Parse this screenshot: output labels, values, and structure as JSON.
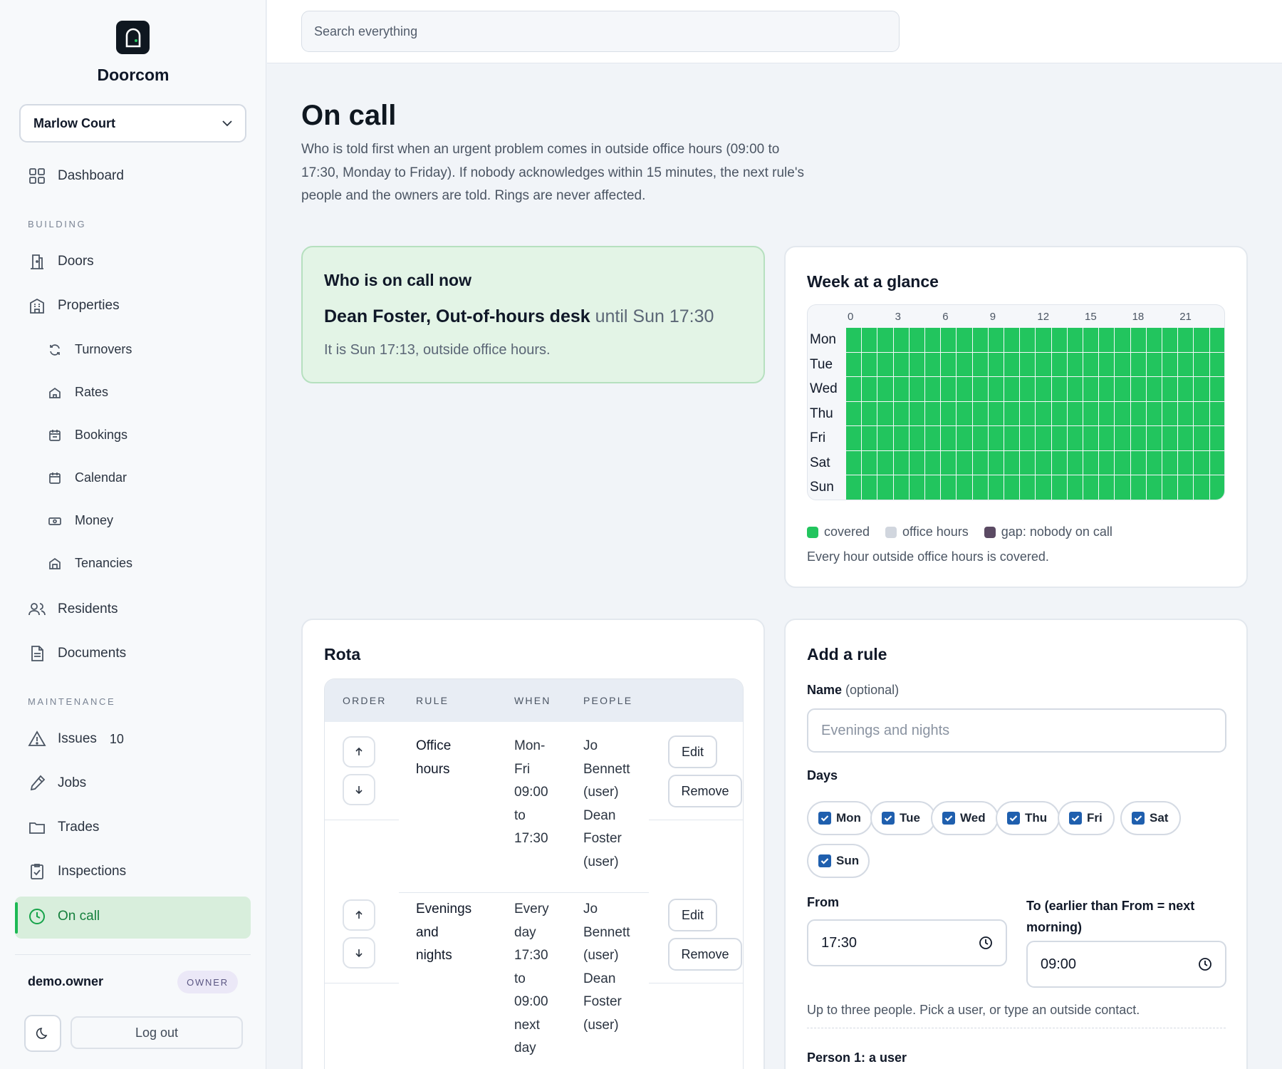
{
  "app": {
    "name": "Doorcom"
  },
  "property_selector": {
    "value": "Marlow Court"
  },
  "search": {
    "placeholder": "Search everything"
  },
  "nav": {
    "dashboard": "Dashboard",
    "section_building": "BUILDING",
    "doors": "Doors",
    "properties": "Properties",
    "turnovers": "Turnovers",
    "rates": "Rates",
    "bookings": "Bookings",
    "calendar": "Calendar",
    "money": "Money",
    "tenancies": "Tenancies",
    "residents": "Residents",
    "documents": "Documents",
    "section_maintenance": "MAINTENANCE",
    "issues": "Issues",
    "issues_count": "10",
    "jobs": "Jobs",
    "trades": "Trades",
    "inspections": "Inspections",
    "on_call": "On call"
  },
  "user": {
    "name": "demo.owner",
    "role": "OWNER",
    "logout": "Log out"
  },
  "page": {
    "title": "On call",
    "intro": "Who is told first when an urgent problem comes in outside office hours (09:00 to 17:30, Monday to Friday). If nobody acknowledges within 15 minutes, the next rule's people and the owners are told. Rings are never affected."
  },
  "now_card": {
    "title": "Who is on call now",
    "name": "Dean Foster, Out-of-hours desk",
    "until": "until Sun 17:30",
    "status": "It is Sun 17:13, outside office hours."
  },
  "week_card": {
    "title": "Week at a glance",
    "hour_labels": [
      "0",
      "3",
      "6",
      "9",
      "12",
      "15",
      "18",
      "21"
    ],
    "days": [
      "Mon",
      "Tue",
      "Wed",
      "Thu",
      "Fri",
      "Sat",
      "Sun"
    ],
    "hours_per_day": 24,
    "state_all": "covered",
    "legend": [
      {
        "label": "covered",
        "color": "#22c55e"
      },
      {
        "label": "office hours",
        "color": "#d1d6de"
      },
      {
        "label": "gap: nobody on call",
        "color": "#5b4a63"
      }
    ],
    "note": "Every hour outside office hours is covered."
  },
  "rota": {
    "title": "Rota",
    "columns": [
      "ORDER",
      "RULE",
      "WHEN",
      "PEOPLE"
    ],
    "rows": [
      {
        "rule": [
          "Office",
          "hours"
        ],
        "when": [
          "Mon-",
          "Fri",
          "09:00",
          "to",
          "17:30"
        ],
        "people": [
          "Jo",
          "Bennett",
          "(user)",
          "Dean",
          "Foster",
          "(user)"
        ],
        "edit": "Edit",
        "remove": "Remove"
      },
      {
        "rule": [
          "Evenings",
          "and",
          "nights"
        ],
        "when": [
          "Every",
          "day",
          "17:30",
          "to",
          "09:00",
          "next",
          "day"
        ],
        "people": [
          "Jo",
          "Bennett",
          "(user)",
          "Dean",
          "Foster",
          "(user)"
        ],
        "edit": "Edit",
        "remove": "Remove"
      }
    ]
  },
  "add_rule": {
    "title": "Add a rule",
    "name_label": "Name",
    "name_label_hint": "(optional)",
    "name_placeholder": "Evenings and nights",
    "days_label": "Days",
    "days": [
      {
        "label": "Mon",
        "checked": true
      },
      {
        "label": "Tue",
        "checked": true
      },
      {
        "label": "Wed",
        "checked": true
      },
      {
        "label": "Thu",
        "checked": true
      },
      {
        "label": "Fri",
        "checked": true
      },
      {
        "label": "Sat",
        "checked": true
      },
      {
        "label": "Sun",
        "checked": true
      }
    ],
    "from_label": "From",
    "from_value": "17:30",
    "to_label": "To (earlier than From = next",
    "to_label_2": "morning)",
    "to_value": "09:00",
    "people_hint": "Up to three people. Pick a user, or type an outside contact.",
    "person1_label": "Person 1: a user"
  },
  "colors": {
    "accent": "#22c55e",
    "active_nav_bg": "#d8eedc",
    "checkbox": "#1f5fae"
  }
}
